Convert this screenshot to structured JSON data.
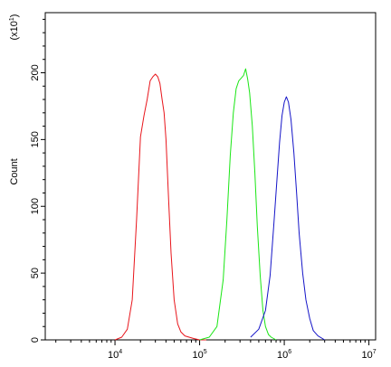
{
  "chart_data": {
    "type": "line",
    "title": "",
    "ylabel": "Count",
    "y_multiplier": "(x10",
    "y_multiplier_exp": "1",
    "y_multiplier_close": ")",
    "xscale": "log",
    "xlim": [
      1500,
      12000000
    ],
    "ylim": [
      0,
      245
    ],
    "y_ticks": [
      0,
      50,
      100,
      150,
      200
    ],
    "x_ticks": [
      {
        "value": 10000,
        "base": "10",
        "exp": "4"
      },
      {
        "value": 100000,
        "base": "10",
        "exp": "5"
      },
      {
        "value": 1000000,
        "base": "10",
        "exp": "6"
      },
      {
        "value": 10000000,
        "base": "10",
        "exp": "7"
      }
    ],
    "grid": false,
    "legend": "none",
    "series": [
      {
        "color": "#e8151b",
        "x": [
          10000,
          12000,
          14000,
          16000,
          18000,
          20000,
          22000,
          24000,
          26000,
          28000,
          30000,
          32000,
          34000,
          36000,
          38000,
          40000,
          43000,
          46000,
          50000,
          55000,
          60000,
          67000,
          75000,
          85000,
          100000,
          120000
        ],
        "y": [
          0,
          2,
          8,
          30,
          90,
          152,
          168,
          180,
          194,
          197,
          199,
          197,
          192,
          180,
          170,
          150,
          105,
          65,
          30,
          12,
          6,
          3,
          2,
          1,
          0,
          0
        ]
      },
      {
        "color": "#1ae615",
        "x": [
          100000,
          130000,
          160000,
          190000,
          210000,
          230000,
          250000,
          270000,
          290000,
          310000,
          330000,
          350000,
          370000,
          390000,
          420000,
          450000,
          480000,
          520000,
          560000,
          600000,
          650000,
          700000,
          800000
        ],
        "y": [
          0,
          2,
          10,
          45,
          90,
          138,
          170,
          188,
          194,
          196,
          198,
          203,
          195,
          185,
          160,
          125,
          85,
          48,
          22,
          10,
          4,
          2,
          0
        ]
      },
      {
        "color": "#1515c8",
        "x": [
          400000,
          500000,
          600000,
          680000,
          750000,
          820000,
          880000,
          940000,
          1000000,
          1060000,
          1120000,
          1200000,
          1300000,
          1400000,
          1500000,
          1650000,
          1800000,
          2000000,
          2200000,
          2500000,
          3000000
        ],
        "y": [
          2,
          8,
          22,
          48,
          85,
          120,
          148,
          168,
          178,
          182,
          178,
          165,
          140,
          110,
          80,
          50,
          30,
          16,
          7,
          3,
          0
        ]
      }
    ]
  }
}
